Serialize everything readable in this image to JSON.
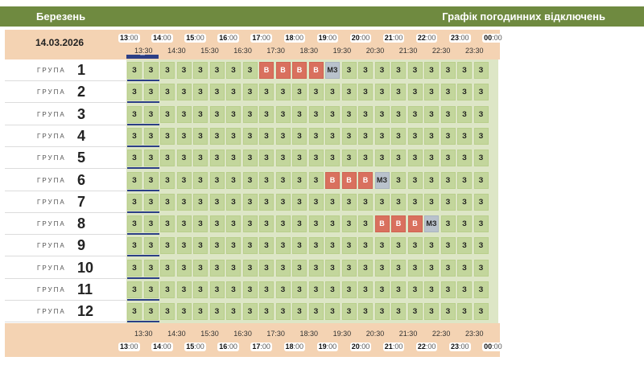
{
  "header": {
    "month": "Березень",
    "title": "Графік погодинних відключень"
  },
  "date": "14.03.2026",
  "hours": [
    "13",
    "14",
    "15",
    "16",
    "17",
    "18",
    "19",
    "20",
    "21",
    "22",
    "23",
    "00"
  ],
  "hour_minutes": ":00",
  "half_hours": [
    "13:30",
    "14:30",
    "15:30",
    "16:30",
    "17:30",
    "18:30",
    "19:30",
    "20:30",
    "21:30",
    "22:30",
    "23:30"
  ],
  "now_marker": "***",
  "group_word": "ГРУПА",
  "groups": [
    {
      "num": "1",
      "cells": [
        "З",
        "З",
        "З",
        "З",
        "З",
        "З",
        "З",
        "З",
        "В",
        "В",
        "В",
        "В",
        "МЗ",
        "З",
        "З",
        "З",
        "З",
        "З",
        "З",
        "З",
        "З",
        "З"
      ]
    },
    {
      "num": "2",
      "cells": [
        "З",
        "З",
        "З",
        "З",
        "З",
        "З",
        "З",
        "З",
        "З",
        "З",
        "З",
        "З",
        "З",
        "З",
        "З",
        "З",
        "З",
        "З",
        "З",
        "З",
        "З",
        "З"
      ]
    },
    {
      "num": "3",
      "cells": [
        "З",
        "З",
        "З",
        "З",
        "З",
        "З",
        "З",
        "З",
        "З",
        "З",
        "З",
        "З",
        "З",
        "З",
        "З",
        "З",
        "З",
        "З",
        "З",
        "З",
        "З",
        "З"
      ]
    },
    {
      "num": "4",
      "cells": [
        "З",
        "З",
        "З",
        "З",
        "З",
        "З",
        "З",
        "З",
        "З",
        "З",
        "З",
        "З",
        "З",
        "З",
        "З",
        "З",
        "З",
        "З",
        "З",
        "З",
        "З",
        "З"
      ]
    },
    {
      "num": "5",
      "cells": [
        "З",
        "З",
        "З",
        "З",
        "З",
        "З",
        "З",
        "З",
        "З",
        "З",
        "З",
        "З",
        "З",
        "З",
        "З",
        "З",
        "З",
        "З",
        "З",
        "З",
        "З",
        "З"
      ]
    },
    {
      "num": "6",
      "cells": [
        "З",
        "З",
        "З",
        "З",
        "З",
        "З",
        "З",
        "З",
        "З",
        "З",
        "З",
        "З",
        "В",
        "В",
        "В",
        "МЗ",
        "З",
        "З",
        "З",
        "З",
        "З",
        "З"
      ]
    },
    {
      "num": "7",
      "cells": [
        "З",
        "З",
        "З",
        "З",
        "З",
        "З",
        "З",
        "З",
        "З",
        "З",
        "З",
        "З",
        "З",
        "З",
        "З",
        "З",
        "З",
        "З",
        "З",
        "З",
        "З",
        "З"
      ]
    },
    {
      "num": "8",
      "cells": [
        "З",
        "З",
        "З",
        "З",
        "З",
        "З",
        "З",
        "З",
        "З",
        "З",
        "З",
        "З",
        "З",
        "З",
        "З",
        "В",
        "В",
        "В",
        "МЗ",
        "З",
        "З",
        "З"
      ]
    },
    {
      "num": "9",
      "cells": [
        "З",
        "З",
        "З",
        "З",
        "З",
        "З",
        "З",
        "З",
        "З",
        "З",
        "З",
        "З",
        "З",
        "З",
        "З",
        "З",
        "З",
        "З",
        "З",
        "З",
        "З",
        "З"
      ]
    },
    {
      "num": "10",
      "cells": [
        "З",
        "З",
        "З",
        "З",
        "З",
        "З",
        "З",
        "З",
        "З",
        "З",
        "З",
        "З",
        "З",
        "З",
        "З",
        "З",
        "З",
        "З",
        "З",
        "З",
        "З",
        "З"
      ]
    },
    {
      "num": "11",
      "cells": [
        "З",
        "З",
        "З",
        "З",
        "З",
        "З",
        "З",
        "З",
        "З",
        "З",
        "З",
        "З",
        "З",
        "З",
        "З",
        "З",
        "З",
        "З",
        "З",
        "З",
        "З",
        "З"
      ]
    },
    {
      "num": "12",
      "cells": [
        "З",
        "З",
        "З",
        "З",
        "З",
        "З",
        "З",
        "З",
        "З",
        "З",
        "З",
        "З",
        "З",
        "З",
        "З",
        "З",
        "З",
        "З",
        "З",
        "З",
        "З",
        "З"
      ]
    }
  ],
  "colors": {
    "on": "#c3d69c",
    "off": "#d9705e",
    "maybe": "#b9c2cc",
    "header_bar": "#6f8a40",
    "panel": "#f4d3b3"
  }
}
